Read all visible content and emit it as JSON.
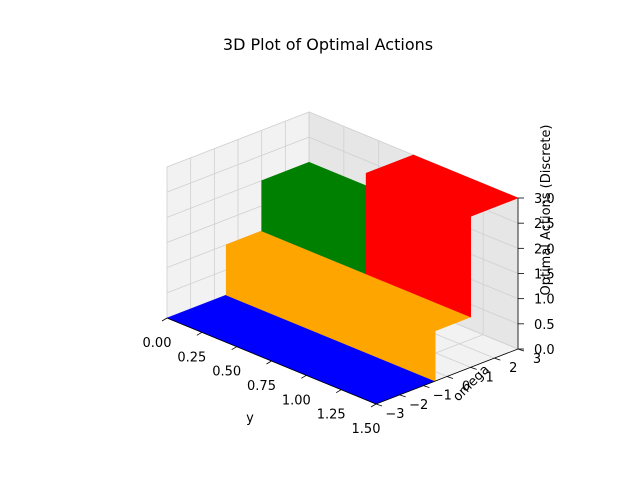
{
  "chart_data": {
    "type": "3d-surface",
    "title": "3D Plot of Optimal Actions",
    "xlabel": "y",
    "ylabel": "omega",
    "zlabel": "Optimal Actions (Discrete)",
    "x_ticks": [
      "0.00",
      "0.25",
      "0.50",
      "0.75",
      "1.00",
      "1.25",
      "1.50"
    ],
    "y_ticks": [
      "−3",
      "−2",
      "−1",
      "0",
      "1",
      "2",
      "3"
    ],
    "z_ticks": [
      "0.0",
      "0.5",
      "1.0",
      "1.5",
      "2.0",
      "2.5",
      "3.0"
    ],
    "xlim": [
      0,
      1.5
    ],
    "ylim": [
      -3,
      3
    ],
    "zlim": [
      0,
      3
    ],
    "grid": true,
    "action_colors": {
      "0": "#0000ff",
      "1": "#ffa500",
      "2": "#008000",
      "3": "#ff0000"
    },
    "regions": [
      {
        "action": 0,
        "y_range": [
          0.0,
          1.5
        ],
        "omega_range": [
          -3.0,
          -0.5
        ]
      },
      {
        "action": 1,
        "y_range": [
          0.0,
          1.5
        ],
        "omega_range": [
          -0.5,
          1.0
        ]
      },
      {
        "action": 2,
        "y_range": [
          0.0,
          0.75
        ],
        "omega_range": [
          1.0,
          3.0
        ]
      },
      {
        "action": 3,
        "y_range": [
          0.75,
          1.5
        ],
        "omega_range": [
          1.0,
          3.0
        ]
      }
    ]
  }
}
